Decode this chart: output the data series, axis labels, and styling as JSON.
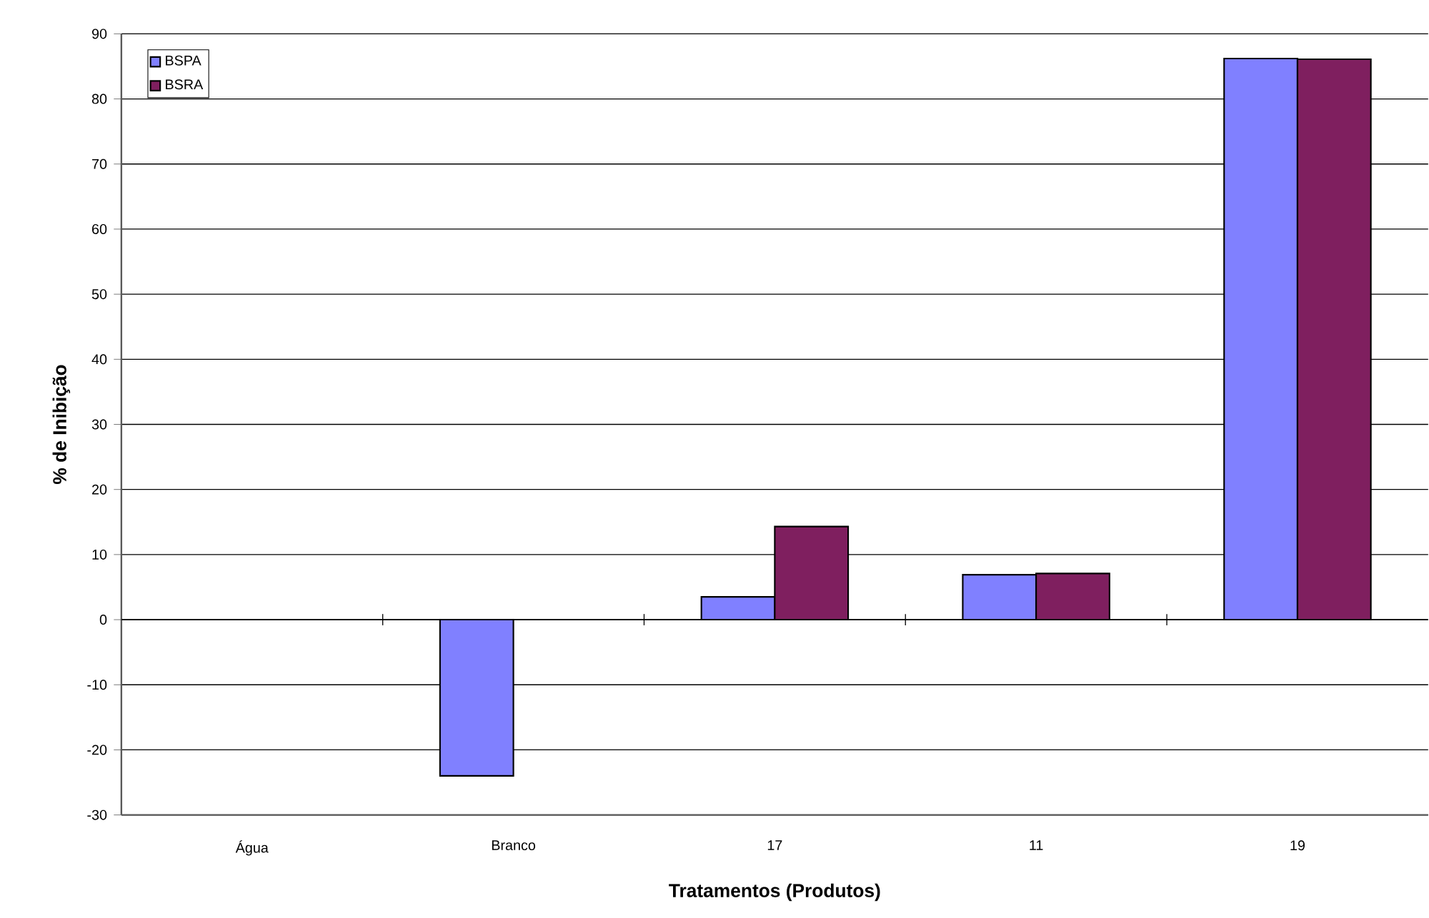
{
  "chart_data": {
    "type": "bar",
    "xlabel": "Tratamentos (Produtos)",
    "ylabel": "% de Inibição",
    "categories": [
      "Água",
      "Branco",
      "17",
      "11",
      "19"
    ],
    "series": [
      {
        "name": "BSPA",
        "color": "#8080ff",
        "values": [
          null,
          -24,
          3.5,
          6.9,
          86.2
        ]
      },
      {
        "name": "BSRA",
        "color": "#7f1f5f",
        "values": [
          null,
          null,
          14.3,
          7.1,
          86.1
        ]
      }
    ],
    "ylim": [
      -30,
      90
    ],
    "yticks": [
      -30,
      -20,
      -10,
      0,
      10,
      20,
      30,
      40,
      50,
      60,
      70,
      80,
      90
    ],
    "grid": "y",
    "legend": "top left"
  }
}
